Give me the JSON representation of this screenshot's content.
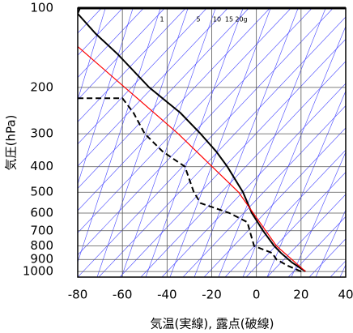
{
  "chart_data": {
    "type": "line",
    "x_label": "気温(実線), 露点(破線)",
    "y_label": "気圧(hPa)",
    "xlim": [
      -80,
      40
    ],
    "xticks": [
      -80,
      -60,
      -40,
      -20,
      0,
      20,
      40
    ],
    "ylim": [
      1050,
      100
    ],
    "yticks": [
      100,
      200,
      300,
      400,
      500,
      600,
      700,
      800,
      900,
      1000
    ],
    "log_y": true,
    "grid": true,
    "mixing_ratio_labels": [
      "1",
      "5",
      "10",
      "15",
      "20g"
    ],
    "series": [
      {
        "color": "#000000",
        "dashed": false,
        "x": [
          22,
          16,
          11,
          8,
          3,
          -2,
          -6,
          -13,
          -18,
          -25,
          -34,
          -48,
          -62,
          -72,
          -80,
          -79
        ],
        "y": [
          1000,
          925,
          850,
          800,
          700,
          600,
          500,
          400,
          350,
          300,
          250,
          200,
          150,
          125,
          105,
          100
        ]
      },
      {
        "color": "#000000",
        "dashed": true,
        "x": [
          20,
          14,
          9,
          7,
          -1,
          -3,
          -4,
          -12,
          -25,
          -28,
          -32,
          -42,
          -50,
          -55,
          -60,
          -80
        ],
        "y": [
          1000,
          950,
          900,
          850,
          800,
          700,
          650,
          600,
          550,
          500,
          400,
          350,
          300,
          250,
          220,
          220
        ]
      },
      {
        "color": "#ff0000",
        "dashed": false,
        "x": [
          22,
          9,
          -8,
          -35,
          -80
        ],
        "y": [
          1000,
          800,
          500,
          300,
          140
        ]
      }
    ]
  }
}
